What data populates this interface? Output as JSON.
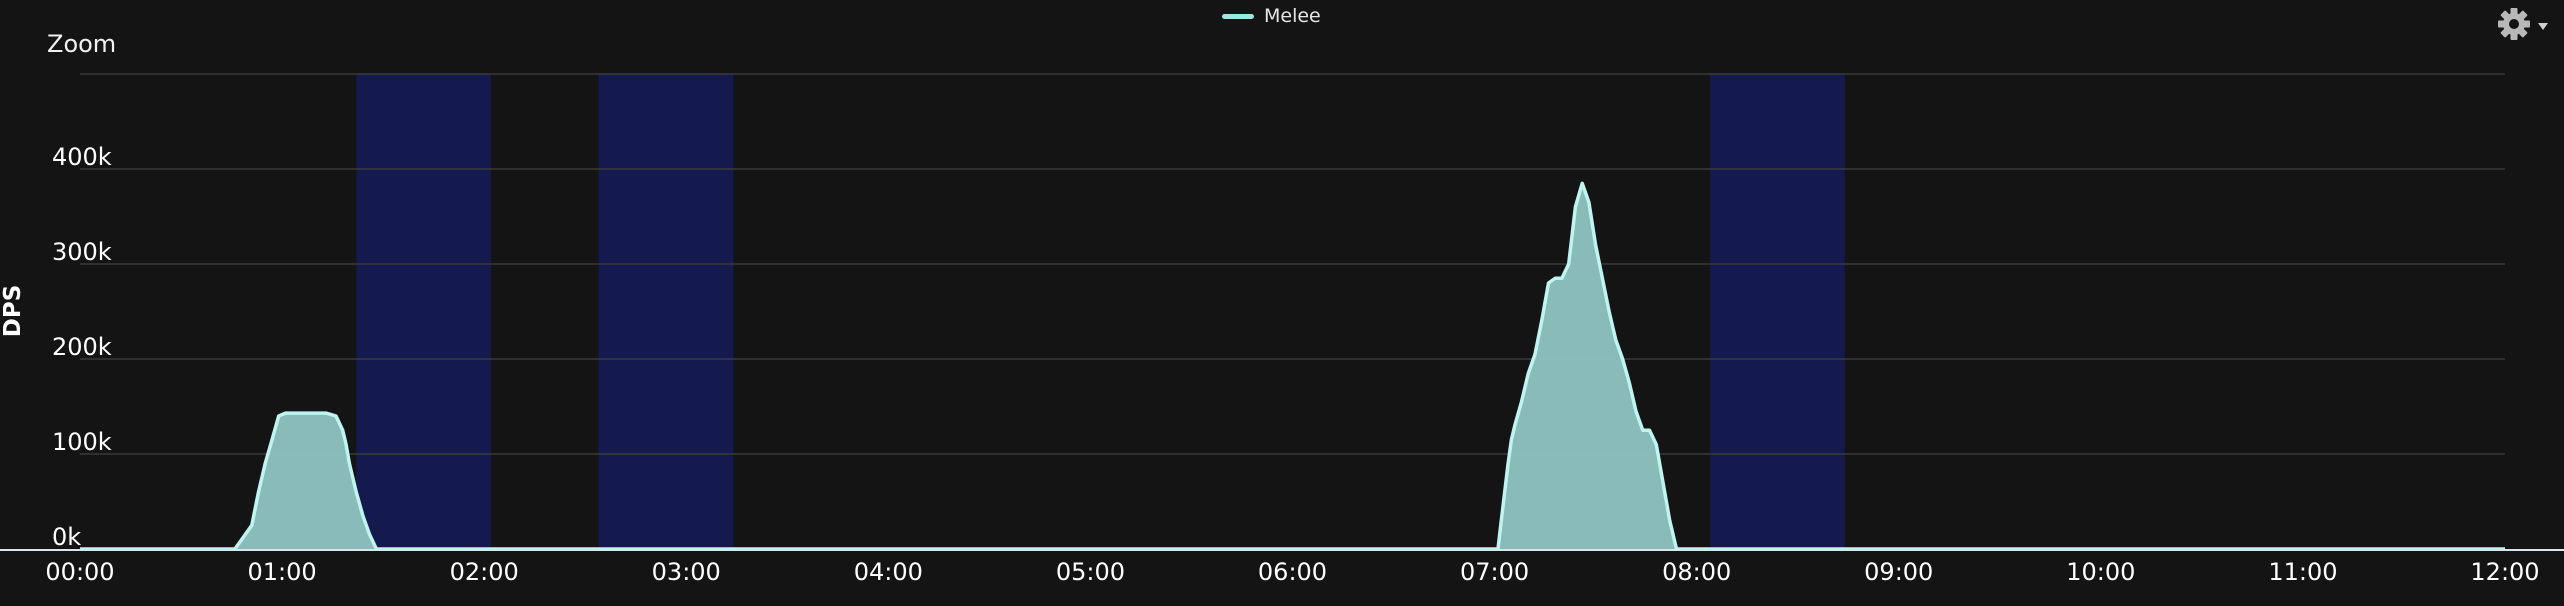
{
  "legend": {
    "series_name": "Melee",
    "swatch_color": "#9ee6e1"
  },
  "zoom_label": "Zoom",
  "settings_icon": "gear-icon",
  "colors": {
    "background": "#141414",
    "grid": "#3a3a3a",
    "series_fill": "#8fc4c1",
    "series_line": "#bff4f0",
    "band": "#141a4e",
    "text": "#ffffff"
  },
  "chart_data": {
    "type": "area",
    "title": "",
    "xlabel": "",
    "ylabel": "DPS",
    "x_ticks": [
      "00:00",
      "01:00",
      "02:00",
      "03:00",
      "04:00",
      "05:00",
      "06:00",
      "07:00",
      "08:00",
      "09:00",
      "10:00",
      "11:00",
      "12:00"
    ],
    "y_ticks": [
      "0k",
      "100k",
      "200k",
      "300k",
      "400k"
    ],
    "y_tick_values": [
      0,
      100000,
      200000,
      300000,
      400000
    ],
    "xlim": [
      0,
      720
    ],
    "ylim": [
      0,
      500000
    ],
    "x_unit": "minutes",
    "grid": true,
    "legend_position": "top-center",
    "bands": [
      {
        "start": 82,
        "end": 122
      },
      {
        "start": 154,
        "end": 194
      },
      {
        "start": 484,
        "end": 524
      }
    ],
    "series": [
      {
        "name": "Melee",
        "x": [
          0,
          46,
          48,
          51,
          53,
          55,
          57,
          59,
          61,
          63,
          65,
          67,
          70,
          73,
          76,
          78,
          79,
          80,
          82,
          84,
          86,
          88,
          90,
          92,
          421,
          422,
          423,
          424,
          425,
          426,
          428,
          430,
          432,
          434,
          436,
          438,
          440,
          442,
          444,
          446,
          448,
          450,
          452,
          454,
          456,
          458,
          460,
          462,
          464,
          466,
          468,
          470,
          472,
          474,
          476,
          478,
          480,
          482,
          720
        ],
        "y": [
          0,
          0,
          10000,
          25000,
          60000,
          90000,
          115000,
          140000,
          143000,
          143000,
          143000,
          143000,
          143000,
          143000,
          140000,
          125000,
          110000,
          90000,
          60000,
          35000,
          15000,
          0,
          0,
          0,
          0,
          30000,
          60000,
          90000,
          115000,
          130000,
          155000,
          185000,
          205000,
          240000,
          280000,
          285000,
          285000,
          300000,
          360000,
          385000,
          365000,
          320000,
          285000,
          250000,
          220000,
          200000,
          175000,
          145000,
          125000,
          125000,
          110000,
          70000,
          30000,
          0,
          0,
          0,
          0,
          0,
          0
        ]
      }
    ]
  }
}
